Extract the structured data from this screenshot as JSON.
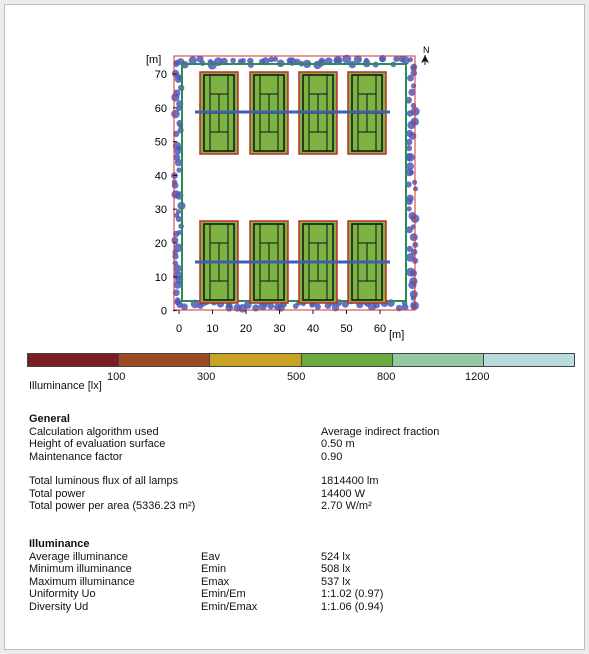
{
  "diagram": {
    "y_unit": "[m]",
    "x_unit": "[m]",
    "north": "N",
    "y_ticks": [
      "70",
      "60",
      "50",
      "40",
      "30",
      "20",
      "10",
      "0"
    ],
    "x_ticks": [
      "0",
      "10",
      "20",
      "30",
      "40",
      "50",
      "60"
    ],
    "courts_per_row": 4,
    "court_rows": 2,
    "colors": {
      "court_fill": "#7cb342",
      "court_border": "#c62828",
      "line": "#111111",
      "fence": "#3f5fb5",
      "trees": "#4b5bb8",
      "perimeter_green": "#2e8b57"
    }
  },
  "legend": {
    "title": "Illuminance [lx]",
    "colors": [
      "#7b1e22",
      "#9c4b22",
      "#c8a326",
      "#6aac3e",
      "#93c8a0",
      "#b9dcdc"
    ],
    "ticks": [
      "100",
      "300",
      "500",
      "800",
      "1200"
    ]
  },
  "general": {
    "title": "General",
    "rows": [
      {
        "label": "Calculation algorithm used",
        "value": "Average indirect fraction"
      },
      {
        "label": "Height of evaluation surface",
        "value": "0.50 m"
      },
      {
        "label": "Maintenance factor",
        "value": "0.90"
      }
    ],
    "rows2": [
      {
        "label": "Total luminous flux of all lamps",
        "value": "1814400 lm"
      },
      {
        "label": "Total power",
        "value": "14400 W"
      },
      {
        "label": "Total power per area (5336.23 m²)",
        "value": "2.70 W/m²"
      }
    ]
  },
  "illuminance": {
    "title": "Illuminance",
    "rows": [
      {
        "label": "Average illuminance",
        "symbol": "Eav",
        "value": "524 lx"
      },
      {
        "label": "Minimum illuminance",
        "symbol": "Emin",
        "value": "508 lx"
      },
      {
        "label": "Maximum illuminance",
        "symbol": "Emax",
        "value": "537 lx"
      },
      {
        "label": "Uniformity Uo",
        "symbol": "Emin/Em",
        "value": "1:1.02 (0.97)"
      },
      {
        "label": "Diversity Ud",
        "symbol": "Emin/Emax",
        "value": "1:1.06 (0.94)"
      }
    ]
  }
}
